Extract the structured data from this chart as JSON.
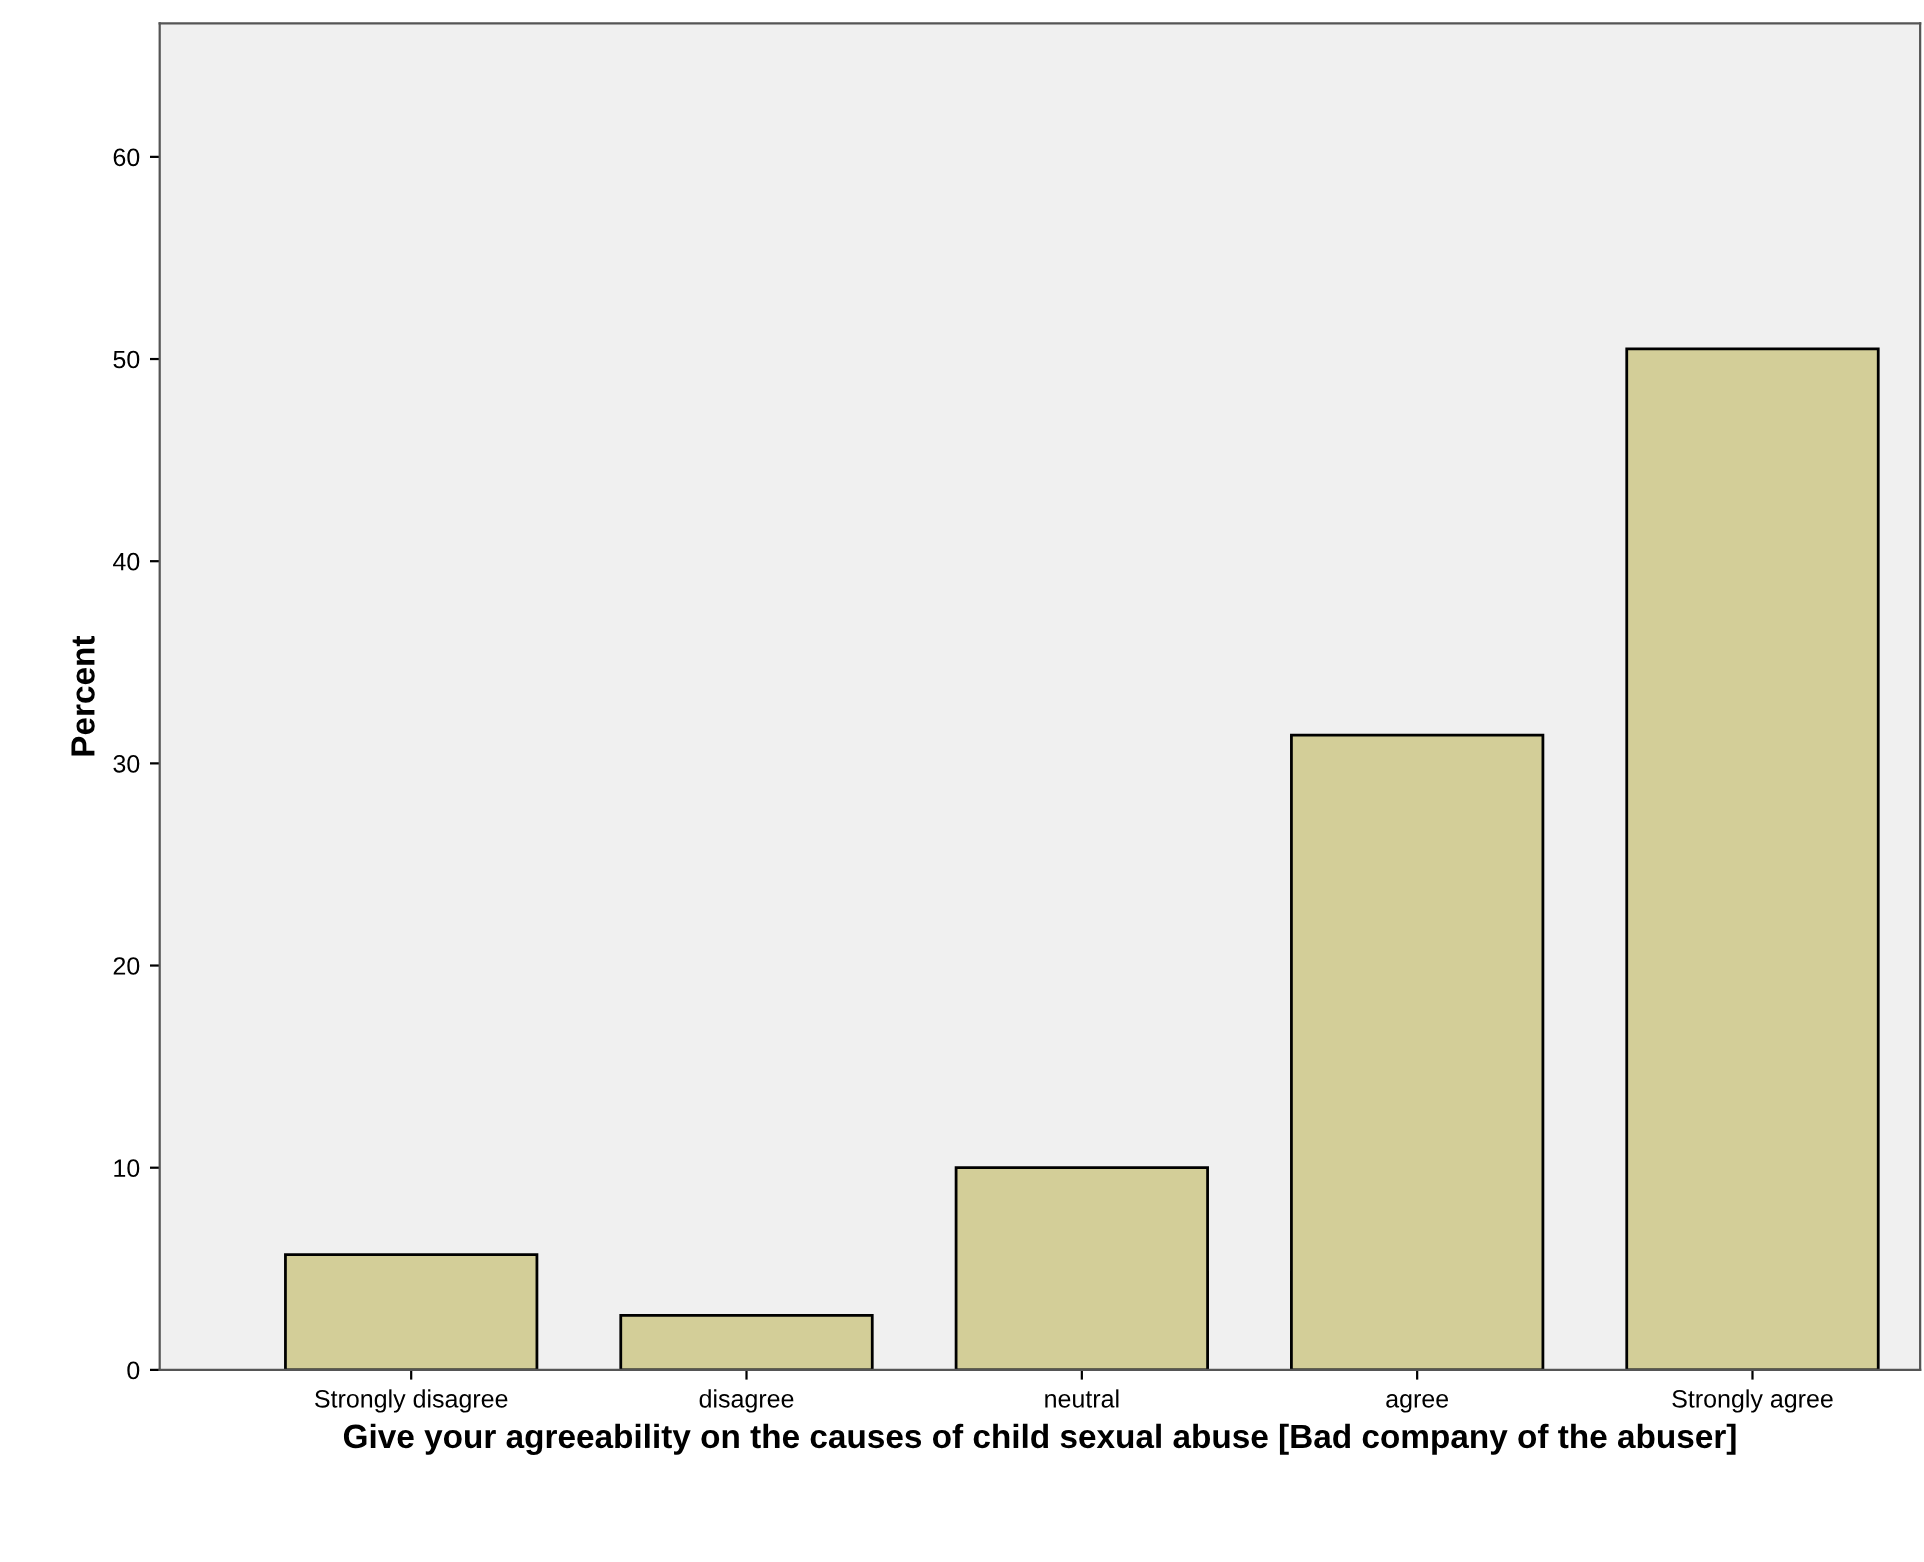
{
  "chart_data": {
    "type": "bar",
    "xlabel": "Give your agreeability on the causes of child sexual abuse [Bad company of the abuser]",
    "ylabel": "Percent",
    "categories": [
      "Strongly disagree",
      "disagree",
      "neutral",
      "agree",
      "Strongly agree"
    ],
    "values": [
      5.7,
      2.7,
      10.0,
      31.4,
      50.5
    ],
    "color": "#d3ce98",
    "ylim": [
      0,
      66.6
    ],
    "yticks": [
      0,
      10,
      20,
      30,
      40,
      50,
      60
    ],
    "grid": false,
    "legend": false
  }
}
